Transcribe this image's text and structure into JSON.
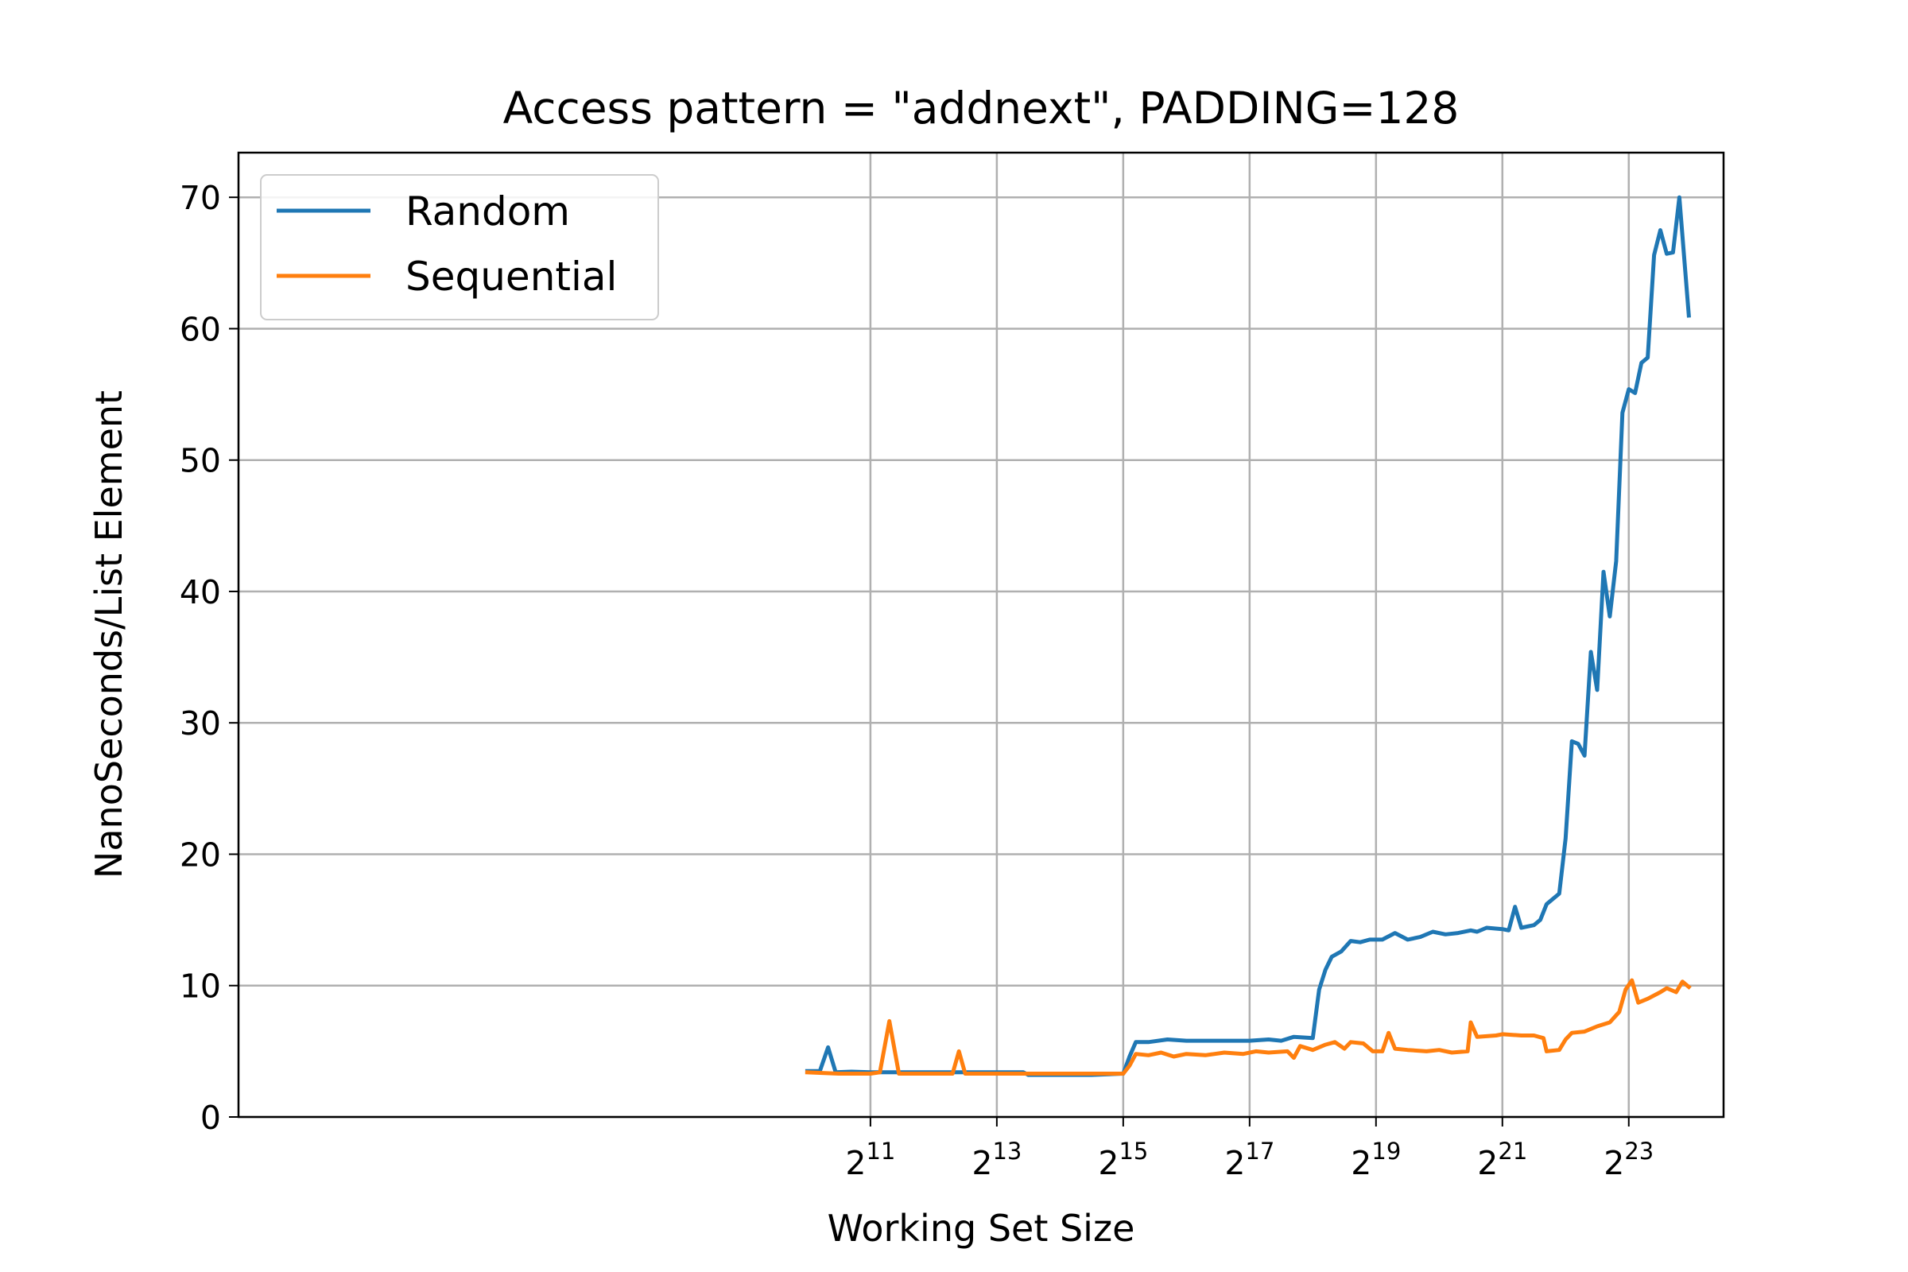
{
  "chart_data": {
    "type": "line",
    "title": "Access pattern = \"addnext\", PADDING=128",
    "xlabel": "Working Set Size",
    "ylabel": "NanoSeconds/List Element",
    "x_scale": "log2",
    "xlim": [
      1.0,
      24.5
    ],
    "ylim": [
      0,
      73.4
    ],
    "x_ticks": [
      {
        "base": "2",
        "exp": "11",
        "value": 11
      },
      {
        "base": "2",
        "exp": "13",
        "value": 13
      },
      {
        "base": "2",
        "exp": "15",
        "value": 15
      },
      {
        "base": "2",
        "exp": "17",
        "value": 17
      },
      {
        "base": "2",
        "exp": "19",
        "value": 19
      },
      {
        "base": "2",
        "exp": "21",
        "value": 21
      },
      {
        "base": "2",
        "exp": "23",
        "value": 23
      }
    ],
    "y_ticks": [
      0,
      10,
      20,
      30,
      40,
      50,
      60,
      70
    ],
    "grid": true,
    "legend_position": "top-left",
    "series": [
      {
        "name": "Random",
        "color": "#1f77b4",
        "points": [
          [
            10.0,
            3.5
          ],
          [
            10.2,
            3.5
          ],
          [
            10.33,
            5.3
          ],
          [
            10.45,
            3.4
          ],
          [
            10.7,
            3.45
          ],
          [
            11.0,
            3.4
          ],
          [
            11.5,
            3.4
          ],
          [
            12.0,
            3.4
          ],
          [
            12.5,
            3.4
          ],
          [
            13.0,
            3.4
          ],
          [
            13.42,
            3.4
          ],
          [
            13.5,
            3.2
          ],
          [
            14.0,
            3.2
          ],
          [
            14.5,
            3.2
          ],
          [
            15.0,
            3.3
          ],
          [
            15.1,
            4.6
          ],
          [
            15.2,
            5.7
          ],
          [
            15.4,
            5.7
          ],
          [
            15.7,
            5.9
          ],
          [
            16.0,
            5.8
          ],
          [
            16.5,
            5.8
          ],
          [
            17.0,
            5.8
          ],
          [
            17.3,
            5.9
          ],
          [
            17.5,
            5.8
          ],
          [
            17.7,
            6.1
          ],
          [
            18.0,
            6.0
          ],
          [
            18.1,
            9.7
          ],
          [
            18.2,
            11.2
          ],
          [
            18.3,
            12.2
          ],
          [
            18.45,
            12.6
          ],
          [
            18.6,
            13.4
          ],
          [
            18.75,
            13.3
          ],
          [
            18.9,
            13.5
          ],
          [
            19.1,
            13.5
          ],
          [
            19.3,
            14.0
          ],
          [
            19.5,
            13.5
          ],
          [
            19.7,
            13.7
          ],
          [
            19.9,
            14.1
          ],
          [
            20.1,
            13.9
          ],
          [
            20.3,
            14.0
          ],
          [
            20.5,
            14.2
          ],
          [
            20.6,
            14.1
          ],
          [
            20.75,
            14.4
          ],
          [
            21.0,
            14.3
          ],
          [
            21.1,
            14.2
          ],
          [
            21.2,
            16.0
          ],
          [
            21.3,
            14.4
          ],
          [
            21.5,
            14.6
          ],
          [
            21.6,
            15.0
          ],
          [
            21.7,
            16.2
          ],
          [
            21.9,
            17.0
          ],
          [
            22.0,
            21.2
          ],
          [
            22.1,
            28.6
          ],
          [
            22.2,
            28.4
          ],
          [
            22.3,
            27.5
          ],
          [
            22.4,
            35.4
          ],
          [
            22.5,
            32.5
          ],
          [
            22.6,
            41.5
          ],
          [
            22.7,
            38.1
          ],
          [
            22.8,
            42.3
          ],
          [
            22.9,
            53.6
          ],
          [
            23.0,
            55.4
          ],
          [
            23.1,
            55.1
          ],
          [
            23.2,
            57.4
          ],
          [
            23.3,
            57.8
          ],
          [
            23.4,
            65.6
          ],
          [
            23.5,
            67.5
          ],
          [
            23.6,
            65.7
          ],
          [
            23.7,
            65.8
          ],
          [
            23.8,
            70.0
          ],
          [
            23.95,
            61.0
          ]
        ]
      },
      {
        "name": "Sequential",
        "color": "#ff7f0e",
        "points": [
          [
            10.0,
            3.4
          ],
          [
            10.5,
            3.3
          ],
          [
            11.0,
            3.3
          ],
          [
            11.15,
            3.4
          ],
          [
            11.3,
            7.3
          ],
          [
            11.45,
            3.3
          ],
          [
            12.0,
            3.3
          ],
          [
            12.3,
            3.3
          ],
          [
            12.4,
            5.0
          ],
          [
            12.5,
            3.3
          ],
          [
            13.0,
            3.3
          ],
          [
            14.0,
            3.3
          ],
          [
            14.5,
            3.3
          ],
          [
            15.0,
            3.3
          ],
          [
            15.1,
            3.9
          ],
          [
            15.2,
            4.8
          ],
          [
            15.4,
            4.7
          ],
          [
            15.6,
            4.9
          ],
          [
            15.8,
            4.6
          ],
          [
            16.0,
            4.8
          ],
          [
            16.3,
            4.7
          ],
          [
            16.6,
            4.9
          ],
          [
            16.9,
            4.8
          ],
          [
            17.1,
            5.0
          ],
          [
            17.3,
            4.9
          ],
          [
            17.6,
            5.0
          ],
          [
            17.7,
            4.5
          ],
          [
            17.8,
            5.4
          ],
          [
            18.0,
            5.1
          ],
          [
            18.2,
            5.5
          ],
          [
            18.35,
            5.7
          ],
          [
            18.5,
            5.2
          ],
          [
            18.6,
            5.7
          ],
          [
            18.8,
            5.6
          ],
          [
            18.95,
            5.0
          ],
          [
            19.1,
            5.0
          ],
          [
            19.2,
            6.4
          ],
          [
            19.3,
            5.2
          ],
          [
            19.5,
            5.1
          ],
          [
            19.8,
            5.0
          ],
          [
            20.0,
            5.1
          ],
          [
            20.2,
            4.9
          ],
          [
            20.45,
            5.0
          ],
          [
            20.5,
            7.2
          ],
          [
            20.6,
            6.1
          ],
          [
            20.9,
            6.2
          ],
          [
            21.0,
            6.3
          ],
          [
            21.3,
            6.2
          ],
          [
            21.5,
            6.2
          ],
          [
            21.65,
            6.0
          ],
          [
            21.7,
            5.0
          ],
          [
            21.9,
            5.1
          ],
          [
            22.0,
            5.9
          ],
          [
            22.1,
            6.4
          ],
          [
            22.3,
            6.5
          ],
          [
            22.5,
            6.9
          ],
          [
            22.7,
            7.2
          ],
          [
            22.85,
            8.0
          ],
          [
            22.95,
            9.7
          ],
          [
            23.05,
            10.4
          ],
          [
            23.15,
            8.7
          ],
          [
            23.3,
            9.0
          ],
          [
            23.5,
            9.5
          ],
          [
            23.6,
            9.8
          ],
          [
            23.75,
            9.5
          ],
          [
            23.85,
            10.3
          ],
          [
            23.95,
            9.9
          ]
        ]
      }
    ]
  }
}
